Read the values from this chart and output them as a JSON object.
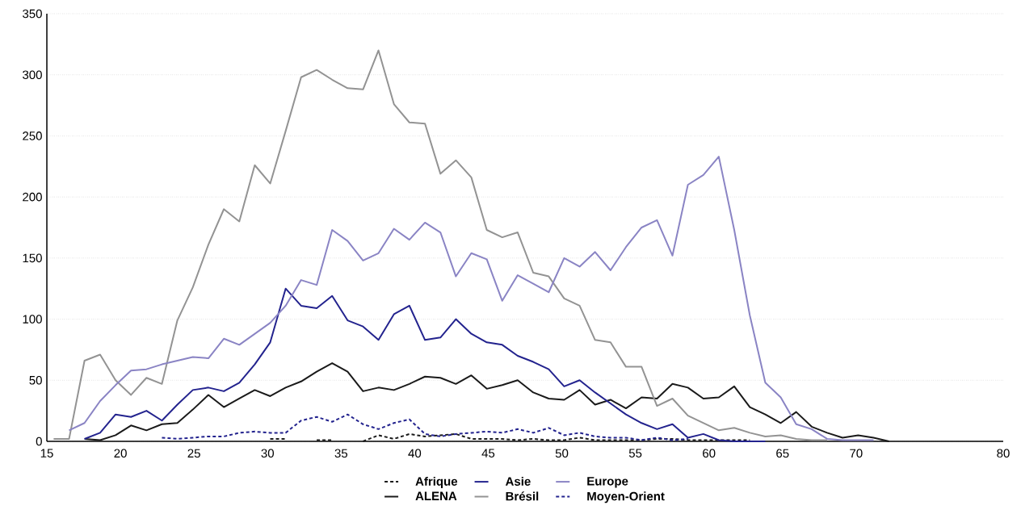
{
  "chart_data": {
    "type": "line",
    "x": [
      15.46,
      16.51,
      17.56,
      18.62,
      19.67,
      20.72,
      21.77,
      22.82,
      23.87,
      24.92,
      25.98,
      27.03,
      28.08,
      29.13,
      30.18,
      31.23,
      32.28,
      33.34,
      34.39,
      35.44,
      36.49,
      37.54,
      38.59,
      39.64,
      40.7,
      41.75,
      42.8,
      43.85,
      44.9,
      45.95,
      47.0,
      48.06,
      49.11,
      50.16,
      51.21,
      52.26,
      53.31,
      54.36,
      55.42,
      56.47,
      57.52,
      58.57,
      59.62,
      60.67,
      61.72,
      62.78,
      63.83,
      64.88,
      65.93,
      66.98,
      68.03,
      69.08,
      70.14,
      71.19,
      72.24
    ],
    "xlim": [
      15,
      80
    ],
    "xticks": [
      15,
      20,
      25,
      30,
      35,
      40,
      45,
      50,
      55,
      60,
      65,
      70,
      80
    ],
    "ylim": [
      0,
      350
    ],
    "yticks": [
      0,
      50,
      100,
      150,
      200,
      250,
      300,
      350
    ],
    "grid": "y",
    "legend": "bottom",
    "series": [
      {
        "name": "Afrique",
        "color": "#1a1a1a",
        "line_style": "dashed",
        "values": [
          null,
          null,
          null,
          null,
          null,
          null,
          null,
          null,
          null,
          null,
          null,
          null,
          null,
          null,
          2,
          2,
          null,
          1,
          1,
          null,
          0,
          5,
          2,
          6,
          4,
          5,
          6,
          2,
          2,
          2,
          1,
          2,
          1,
          1,
          3,
          1,
          1,
          1,
          1,
          2,
          2,
          1,
          1,
          1,
          1,
          1,
          null,
          null,
          null,
          null,
          null,
          null,
          null,
          null,
          null
        ]
      },
      {
        "name": "ALENA",
        "color": "#1a1a1a",
        "line_style": "solid",
        "values": [
          null,
          null,
          2,
          1,
          5,
          13,
          9,
          14,
          15,
          26,
          38,
          28,
          35,
          42,
          37,
          44,
          49,
          57,
          64,
          57,
          41,
          44,
          42,
          47,
          53,
          52,
          47,
          54,
          43,
          46,
          50,
          40,
          35,
          34,
          42,
          30,
          34,
          27,
          36,
          35,
          47,
          44,
          35,
          36,
          45,
          28,
          22,
          15,
          24,
          12,
          7,
          3,
          5,
          3,
          0
        ]
      },
      {
        "name": "Asie",
        "color": "#23238e",
        "line_style": "solid",
        "values": [
          null,
          null,
          2,
          7,
          22,
          20,
          25,
          17,
          30,
          42,
          44,
          41,
          48,
          63,
          81,
          125,
          111,
          109,
          119,
          99,
          94,
          83,
          104,
          111,
          83,
          85,
          100,
          88,
          81,
          79,
          70,
          65,
          59,
          45,
          50,
          40,
          31,
          22,
          15,
          10,
          14,
          3,
          6,
          1,
          0,
          0,
          0,
          null,
          null,
          null,
          null,
          null,
          null,
          null,
          null
        ]
      },
      {
        "name": "Brésil",
        "color": "#939393",
        "line_style": "solid",
        "values": [
          2,
          2,
          66,
          71,
          50,
          38,
          52,
          47,
          99,
          126,
          161,
          190,
          180,
          226,
          211,
          254,
          298,
          304,
          296,
          289,
          288,
          320,
          276,
          261,
          260,
          219,
          230,
          216,
          173,
          167,
          171,
          138,
          135,
          117,
          111,
          83,
          81,
          61,
          61,
          29,
          35,
          21,
          15,
          9,
          11,
          7,
          4,
          5,
          2,
          1,
          1,
          null,
          null,
          null,
          null
        ]
      },
      {
        "name": "Europe",
        "color": "#8a84c4",
        "line_style": "solid",
        "values": [
          null,
          9,
          15,
          33,
          46,
          58,
          59,
          63,
          66,
          69,
          68,
          84,
          79,
          88,
          97,
          111,
          132,
          128,
          173,
          164,
          148,
          154,
          174,
          165,
          179,
          171,
          135,
          154,
          149,
          115,
          136,
          129,
          122,
          150,
          143,
          155,
          140,
          159,
          175,
          181,
          152,
          210,
          218,
          233,
          173,
          103,
          48,
          36,
          14,
          10,
          2,
          1,
          1,
          1,
          null
        ]
      },
      {
        "name": "Moyen-Orient",
        "color": "#23238e",
        "line_style": "dashed",
        "values": [
          null,
          null,
          null,
          null,
          null,
          null,
          null,
          3,
          2,
          3,
          4,
          4,
          7,
          8,
          7,
          7,
          17,
          20,
          16,
          22,
          14,
          10,
          15,
          18,
          6,
          4,
          6,
          7,
          8,
          7,
          10,
          7,
          11,
          5,
          7,
          4,
          3,
          3,
          1,
          3,
          1,
          2,
          null,
          null,
          null,
          null,
          null,
          null,
          null,
          null,
          null,
          null,
          null,
          null,
          null
        ]
      }
    ]
  }
}
